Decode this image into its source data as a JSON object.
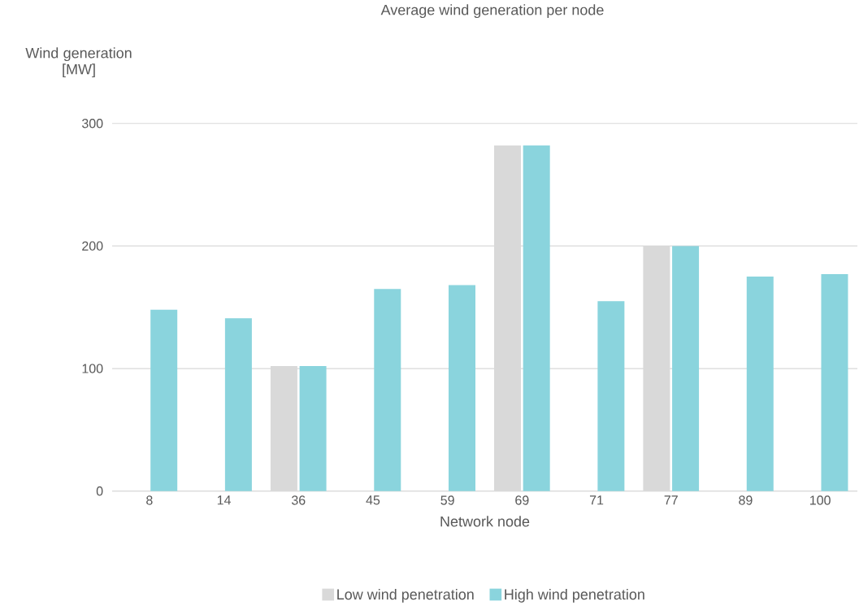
{
  "chart_data": {
    "type": "bar",
    "title": "Average wind generation per node",
    "xlabel": "Network node",
    "ylabel": "Wind generation [MW]",
    "categories": [
      "8",
      "14",
      "36",
      "45",
      "59",
      "69",
      "71",
      "77",
      "89",
      "100"
    ],
    "series": [
      {
        "name": "Low wind penetration",
        "color": "#d9d9d9",
        "values": [
          null,
          null,
          102,
          null,
          null,
          282,
          null,
          200,
          null,
          null
        ]
      },
      {
        "name": "High wind penetration",
        "color": "#8ad4dd",
        "values": [
          148,
          141,
          102,
          165,
          168,
          282,
          155,
          200,
          175,
          177
        ]
      }
    ],
    "ylim": [
      0,
      300
    ],
    "yticks": [
      0,
      100,
      200,
      300
    ],
    "grid": "y",
    "legend": "bottom"
  }
}
